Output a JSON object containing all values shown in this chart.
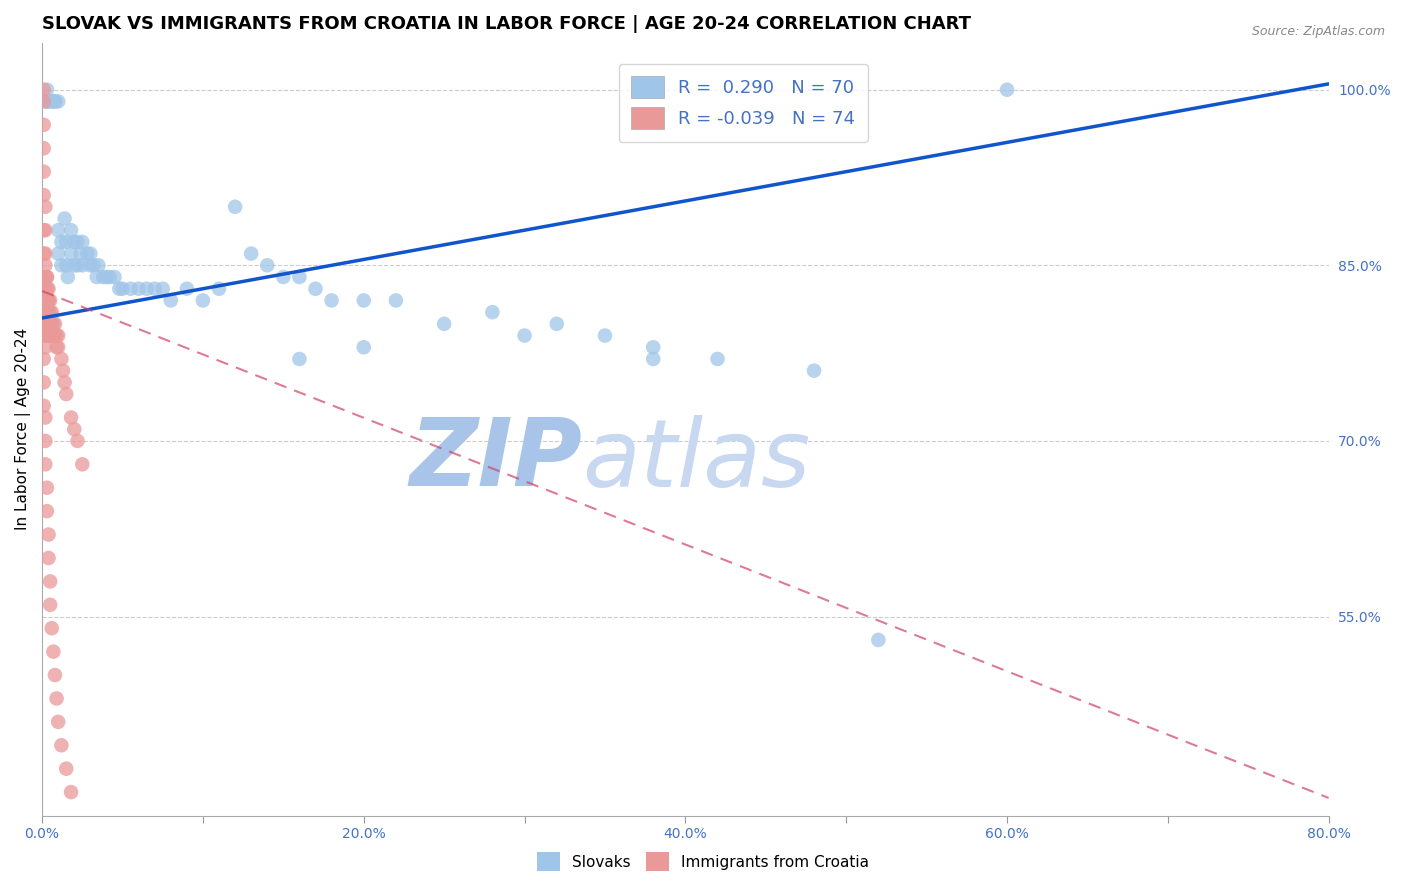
{
  "title": "SLOVAK VS IMMIGRANTS FROM CROATIA IN LABOR FORCE | AGE 20-24 CORRELATION CHART",
  "source": "Source: ZipAtlas.com",
  "ylabel": "In Labor Force | Age 20-24",
  "xlim": [
    0.0,
    0.8
  ],
  "ylim": [
    0.38,
    1.04
  ],
  "xticks": [
    0.0,
    0.1,
    0.2,
    0.3,
    0.4,
    0.5,
    0.6,
    0.7,
    0.8
  ],
  "xticklabels": [
    "0.0%",
    "",
    "20.0%",
    "",
    "40.0%",
    "",
    "60.0%",
    "",
    "80.0%"
  ],
  "yticks_right": [
    1.0,
    0.85,
    0.7,
    0.55
  ],
  "ytick_right_labels": [
    "100.0%",
    "85.0%",
    "70.0%",
    "55.0%"
  ],
  "right_axis_color": "#4472c4",
  "watermark_zip": "ZIP",
  "watermark_atlas": "atlas",
  "blue_R": 0.29,
  "blue_N": 70,
  "pink_R": -0.039,
  "pink_N": 74,
  "blue_color": "#9fc5e8",
  "pink_color": "#ea9999",
  "blue_line_color": "#1155cc",
  "pink_line_color": "#cc4466",
  "legend_blue_label": "Slovaks",
  "legend_pink_label": "Immigrants from Croatia",
  "blue_scatter_x": [
    0.003,
    0.003,
    0.003,
    0.003,
    0.003,
    0.006,
    0.006,
    0.008,
    0.008,
    0.01,
    0.01,
    0.01,
    0.012,
    0.012,
    0.014,
    0.015,
    0.015,
    0.016,
    0.018,
    0.018,
    0.02,
    0.02,
    0.022,
    0.022,
    0.024,
    0.025,
    0.025,
    0.028,
    0.03,
    0.03,
    0.032,
    0.034,
    0.035,
    0.038,
    0.04,
    0.042,
    0.045,
    0.048,
    0.05,
    0.055,
    0.06,
    0.065,
    0.07,
    0.075,
    0.08,
    0.09,
    0.1,
    0.11,
    0.12,
    0.13,
    0.14,
    0.15,
    0.16,
    0.17,
    0.18,
    0.2,
    0.22,
    0.25,
    0.28,
    0.3,
    0.32,
    0.35,
    0.38,
    0.42,
    0.48,
    0.52,
    0.38,
    0.16,
    0.2,
    0.6
  ],
  "blue_scatter_y": [
    1.0,
    0.99,
    0.99,
    0.99,
    0.99,
    0.99,
    0.99,
    0.99,
    0.99,
    0.99,
    0.88,
    0.86,
    0.87,
    0.85,
    0.89,
    0.87,
    0.85,
    0.84,
    0.88,
    0.86,
    0.87,
    0.85,
    0.87,
    0.85,
    0.86,
    0.87,
    0.85,
    0.86,
    0.86,
    0.85,
    0.85,
    0.84,
    0.85,
    0.84,
    0.84,
    0.84,
    0.84,
    0.83,
    0.83,
    0.83,
    0.83,
    0.83,
    0.83,
    0.83,
    0.82,
    0.83,
    0.82,
    0.83,
    0.9,
    0.86,
    0.85,
    0.84,
    0.84,
    0.83,
    0.82,
    0.82,
    0.82,
    0.8,
    0.81,
    0.79,
    0.8,
    0.79,
    0.78,
    0.77,
    0.76,
    0.53,
    0.77,
    0.77,
    0.78,
    1.0
  ],
  "pink_scatter_x": [
    0.001,
    0.001,
    0.001,
    0.001,
    0.001,
    0.001,
    0.001,
    0.001,
    0.002,
    0.002,
    0.002,
    0.002,
    0.002,
    0.002,
    0.002,
    0.002,
    0.003,
    0.003,
    0.003,
    0.003,
    0.003,
    0.003,
    0.004,
    0.004,
    0.004,
    0.004,
    0.004,
    0.005,
    0.005,
    0.005,
    0.005,
    0.006,
    0.006,
    0.006,
    0.007,
    0.007,
    0.008,
    0.008,
    0.009,
    0.009,
    0.01,
    0.01,
    0.012,
    0.013,
    0.014,
    0.015,
    0.018,
    0.02,
    0.022,
    0.025,
    0.001,
    0.001,
    0.001,
    0.002,
    0.002,
    0.002,
    0.003,
    0.003,
    0.004,
    0.004,
    0.005,
    0.005,
    0.006,
    0.007,
    0.008,
    0.009,
    0.01,
    0.012,
    0.015,
    0.018,
    0.002,
    0.003,
    0.003,
    0.004
  ],
  "pink_scatter_y": [
    1.0,
    0.99,
    0.97,
    0.95,
    0.93,
    0.91,
    0.88,
    0.86,
    0.9,
    0.88,
    0.86,
    0.84,
    0.82,
    0.8,
    0.79,
    0.78,
    0.84,
    0.83,
    0.82,
    0.81,
    0.8,
    0.79,
    0.83,
    0.82,
    0.81,
    0.8,
    0.79,
    0.82,
    0.81,
    0.8,
    0.79,
    0.81,
    0.8,
    0.79,
    0.8,
    0.79,
    0.8,
    0.79,
    0.79,
    0.78,
    0.79,
    0.78,
    0.77,
    0.76,
    0.75,
    0.74,
    0.72,
    0.71,
    0.7,
    0.68,
    0.77,
    0.75,
    0.73,
    0.72,
    0.7,
    0.68,
    0.66,
    0.64,
    0.62,
    0.6,
    0.58,
    0.56,
    0.54,
    0.52,
    0.5,
    0.48,
    0.46,
    0.44,
    0.42,
    0.4,
    0.85,
    0.84,
    0.83,
    0.82
  ],
  "grid_color": "#cccccc",
  "bg_color": "#ffffff",
  "title_fontsize": 13,
  "axis_fontsize": 11,
  "tick_fontsize": 10,
  "watermark_color_zip": "#a8c4e8",
  "watermark_color_atlas": "#c8d8f0",
  "watermark_fontsize": 68
}
